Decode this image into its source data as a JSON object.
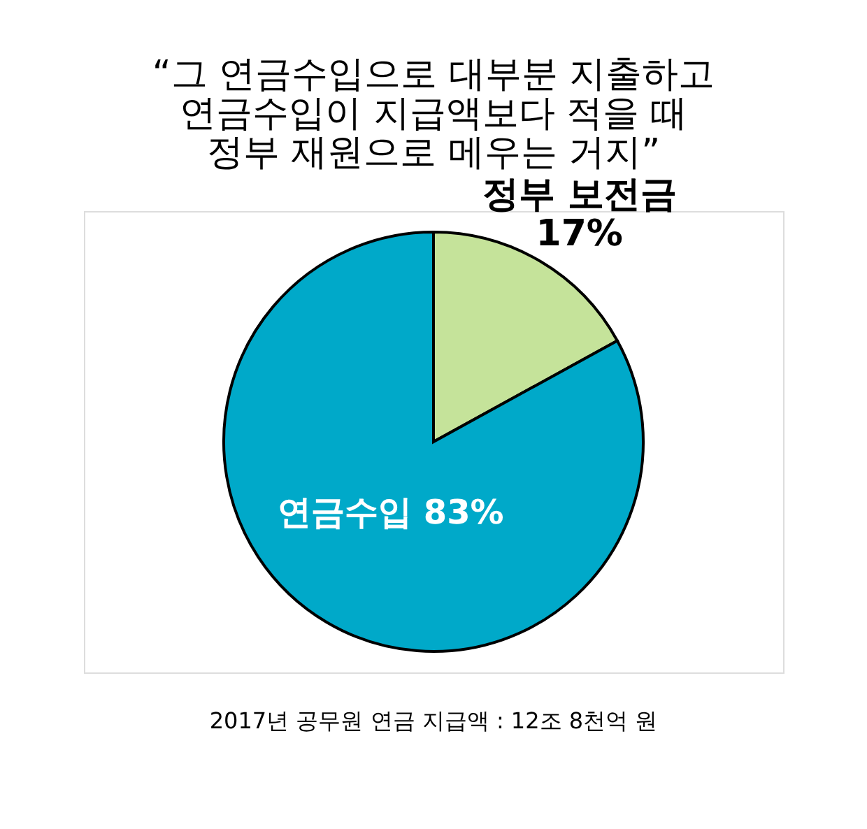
{
  "chart_data": {
    "type": "pie",
    "title": "“그 연금수입으로 대부분 지출하고\n연금수입이 지급액보다 적을 때\n정부 재원으로 메우는 거지”",
    "categories": [
      "정부 보전금",
      "연금수입"
    ],
    "values": [
      17,
      83
    ],
    "colors": [
      "#c5e39a",
      "#00a9c9"
    ],
    "value_labels": [
      "17%",
      "83%"
    ],
    "annotations": [
      "2017년 공무원 연금 지급액 : 12조 8천억 원"
    ]
  }
}
